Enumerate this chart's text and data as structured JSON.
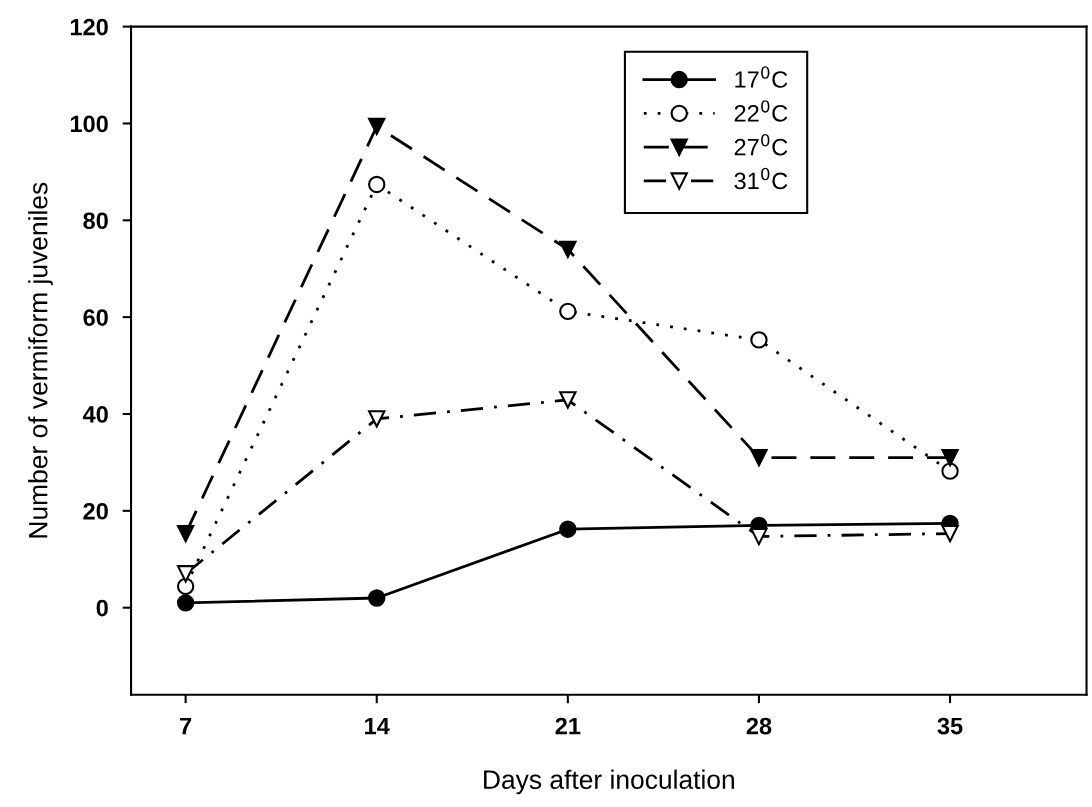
{
  "chart_data": {
    "type": "line",
    "xlabel": "Days after inoculation",
    "ylabel": "Number of vermiform juveniles",
    "x": [
      7,
      14,
      21,
      28,
      35
    ],
    "series": [
      {
        "name": "17$^{0}$C",
        "color": "#000000",
        "marker": "circle",
        "line_style": "solid",
        "values": [
          1,
          2,
          16.2,
          17,
          17.4
        ]
      },
      {
        "name": "22$^{0}$C",
        "color": "#000000",
        "marker": "circle",
        "line_style": "dotted",
        "values": [
          4.4,
          87.4,
          61.2,
          55.3,
          28.2
        ]
      },
      {
        "name": "27$^{0}$C",
        "color": "#000000",
        "marker": "triangle_down",
        "line_style": "dashed",
        "values": [
          15.3,
          99.4,
          74,
          31,
          31
        ]
      },
      {
        "name": "31$^{0}$C",
        "color": "#000000",
        "marker": "triangle_down",
        "line_style": "dashdot",
        "values": [
          7,
          39,
          42.9,
          14.7,
          15.3
        ]
      }
    ],
    "xlim": [
      5,
      40
    ],
    "xticks": [
      7,
      14,
      21,
      28,
      35
    ],
    "ylim": [
      -18,
      120
    ],
    "yticks": [
      0,
      20,
      40,
      60,
      80,
      100,
      120
    ],
    "grid": false,
    "legend": "top right"
  }
}
